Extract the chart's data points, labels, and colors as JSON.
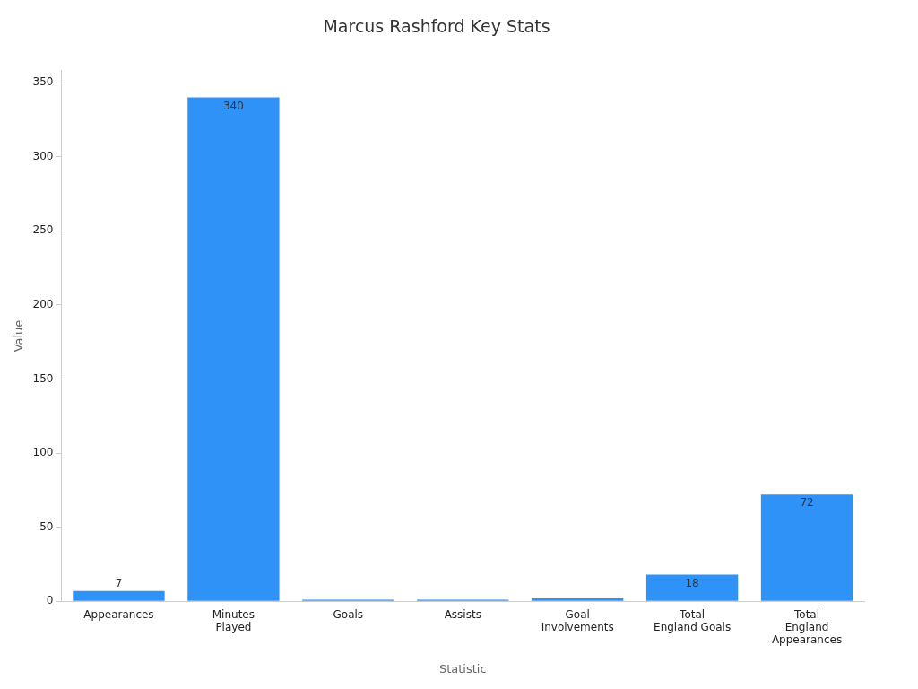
{
  "chart_data": {
    "type": "bar",
    "title": "Marcus Rashford Key Stats",
    "xlabel": "Statistic",
    "ylabel": "Value",
    "categories": [
      "Appearances",
      "Minutes\nPlayed",
      "Goals",
      "Assists",
      "Goal\nInvolvements",
      "Total\nEngland Goals",
      "Total\nEngland\nAppearances"
    ],
    "values": [
      7,
      340,
      1,
      1,
      2,
      18,
      72
    ],
    "value_labels": [
      "7",
      "340",
      null,
      null,
      null,
      "18",
      "72"
    ],
    "color": "#2f92f7",
    "ylim": [
      0,
      358
    ],
    "yticks": [
      0,
      50,
      100,
      150,
      200,
      250,
      300,
      350
    ],
    "grid": false,
    "legend": false
  }
}
